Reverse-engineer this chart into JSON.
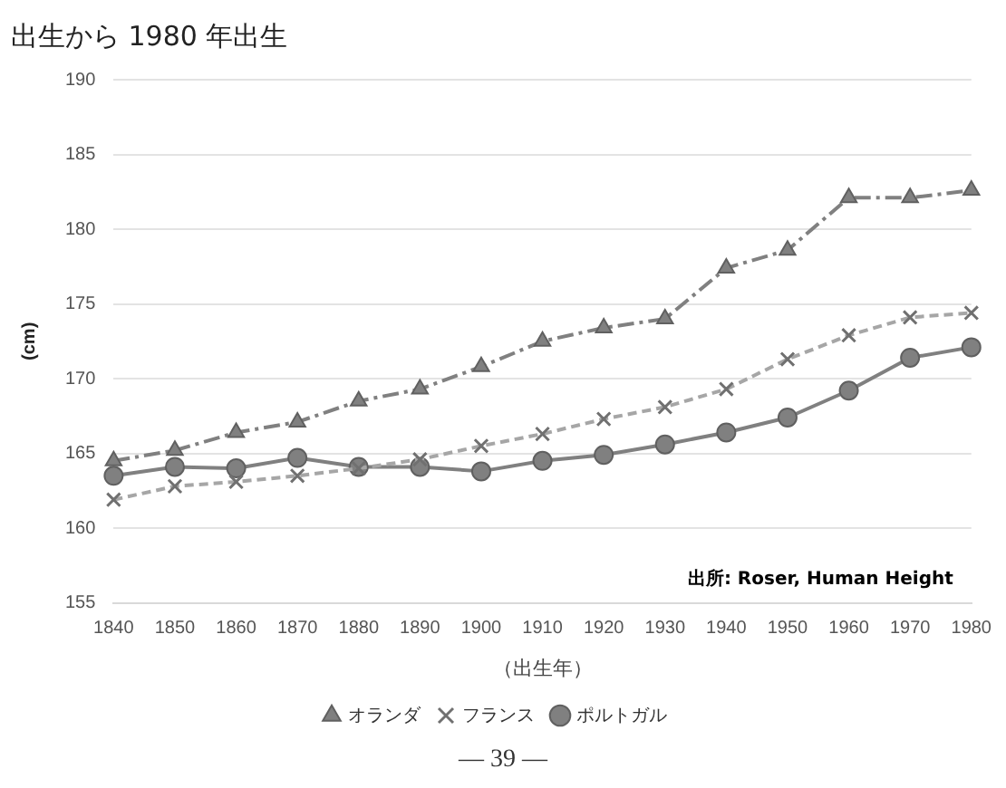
{
  "chart_data": {
    "type": "line",
    "title": "出生から 1980 年出生",
    "xlabel": "（出生年）",
    "ylabel": "(cm)",
    "categories": [
      "1840",
      "1850",
      "1860",
      "1870",
      "1880",
      "1890",
      "1900",
      "1910",
      "1920",
      "1930",
      "1940",
      "1950",
      "1960",
      "1970",
      "1980"
    ],
    "series": [
      {
        "name": "オランダ",
        "color": "#808080",
        "marker": "triangle",
        "line_style": "dashdot",
        "values": [
          164.5,
          165.2,
          166.4,
          167.1,
          168.5,
          169.3,
          170.8,
          172.5,
          173.4,
          174.0,
          177.4,
          178.6,
          182.1,
          182.1,
          182.6
        ]
      },
      {
        "name": "フランス",
        "color": "#a6a6a6",
        "marker": "cross",
        "line_style": "dashed",
        "values": [
          161.9,
          162.8,
          163.1,
          163.5,
          164.0,
          164.6,
          165.5,
          166.3,
          167.3,
          168.1,
          169.3,
          171.3,
          172.9,
          174.1,
          174.4
        ]
      },
      {
        "name": "ポルトガル",
        "color": "#808080",
        "marker": "circle",
        "line_style": "solid",
        "values": [
          163.5,
          164.1,
          164.0,
          164.7,
          164.1,
          164.1,
          163.8,
          164.5,
          164.9,
          165.6,
          166.4,
          167.4,
          169.2,
          171.4,
          172.1
        ]
      }
    ],
    "ylim": [
      155,
      190
    ],
    "yticks": [
      155,
      160,
      165,
      170,
      175,
      180,
      185,
      190
    ],
    "grid": "y",
    "legend": "bottom",
    "annotations": [
      "出所: Roser, Human Height",
      "— 39 —"
    ]
  }
}
